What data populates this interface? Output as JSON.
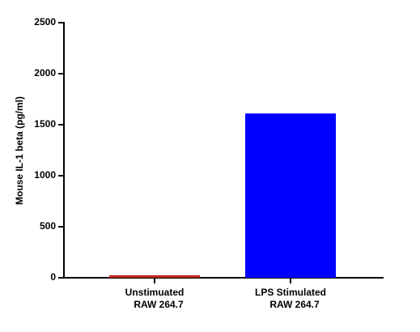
{
  "chart_data": {
    "type": "bar",
    "y_label": "Mouse IL-1 beta  (pg/ml)",
    "categories": [
      [
        "Unstimuated",
        "RAW 264.7"
      ],
      [
        "LPS Stimulated",
        "RAW 264.7"
      ]
    ],
    "values": [
      25,
      1610
    ],
    "colors": [
      "#c0281e",
      "#0000ff"
    ],
    "ylim": [
      0,
      2500
    ],
    "yticks": [
      0,
      500,
      1000,
      1500,
      2000,
      2500
    ],
    "grid": false
  }
}
